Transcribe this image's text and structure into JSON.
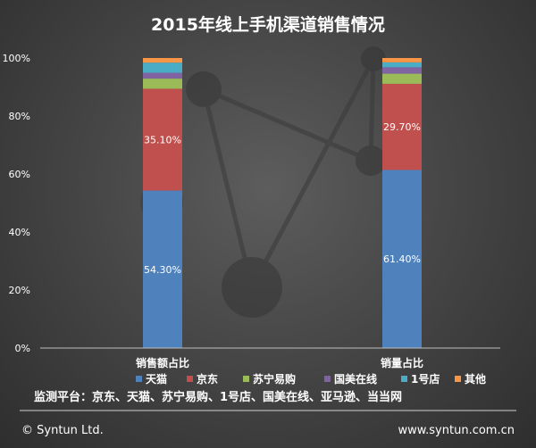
{
  "chart_data": {
    "type": "bar",
    "stacked": "percent",
    "title": "2015年线上手机渠道销售情况",
    "categories": [
      "销售额占比",
      "销量占比"
    ],
    "series": [
      {
        "name": "天猫",
        "color": "#4f81bd",
        "values": [
          54.3,
          61.4
        ],
        "labels": [
          "54.30%",
          "61.40%"
        ]
      },
      {
        "name": "京东",
        "color": "#c0504d",
        "values": [
          35.1,
          29.7
        ],
        "labels": [
          "35.10%",
          "29.70%"
        ]
      },
      {
        "name": "苏宁易购",
        "color": "#9bbb59",
        "values": [
          3.5,
          3.5
        ],
        "labels": [
          "",
          ""
        ]
      },
      {
        "name": "国美在线",
        "color": "#8064a2",
        "values": [
          2.0,
          2.2
        ],
        "labels": [
          "",
          ""
        ]
      },
      {
        "name": "1号店",
        "color": "#4bacc6",
        "values": [
          3.5,
          1.7
        ],
        "labels": [
          "",
          ""
        ]
      },
      {
        "name": "其他",
        "color": "#f79646",
        "values": [
          1.6,
          1.5
        ],
        "labels": [
          "",
          ""
        ]
      }
    ],
    "ylim": [
      0,
      100
    ],
    "yticks": [
      0,
      20,
      40,
      60,
      80,
      100
    ],
    "ytick_labels": [
      "0%",
      "20%",
      "40%",
      "60%",
      "80%",
      "100%"
    ],
    "grid": false,
    "legend_position": "bottom"
  },
  "note": "监测平台：京东、天猫、苏宁易购、1号店、国美在线、亚马逊、当当网",
  "footer": {
    "left": "© Syntun Ltd.",
    "right": "www.syntun.com.cn"
  }
}
